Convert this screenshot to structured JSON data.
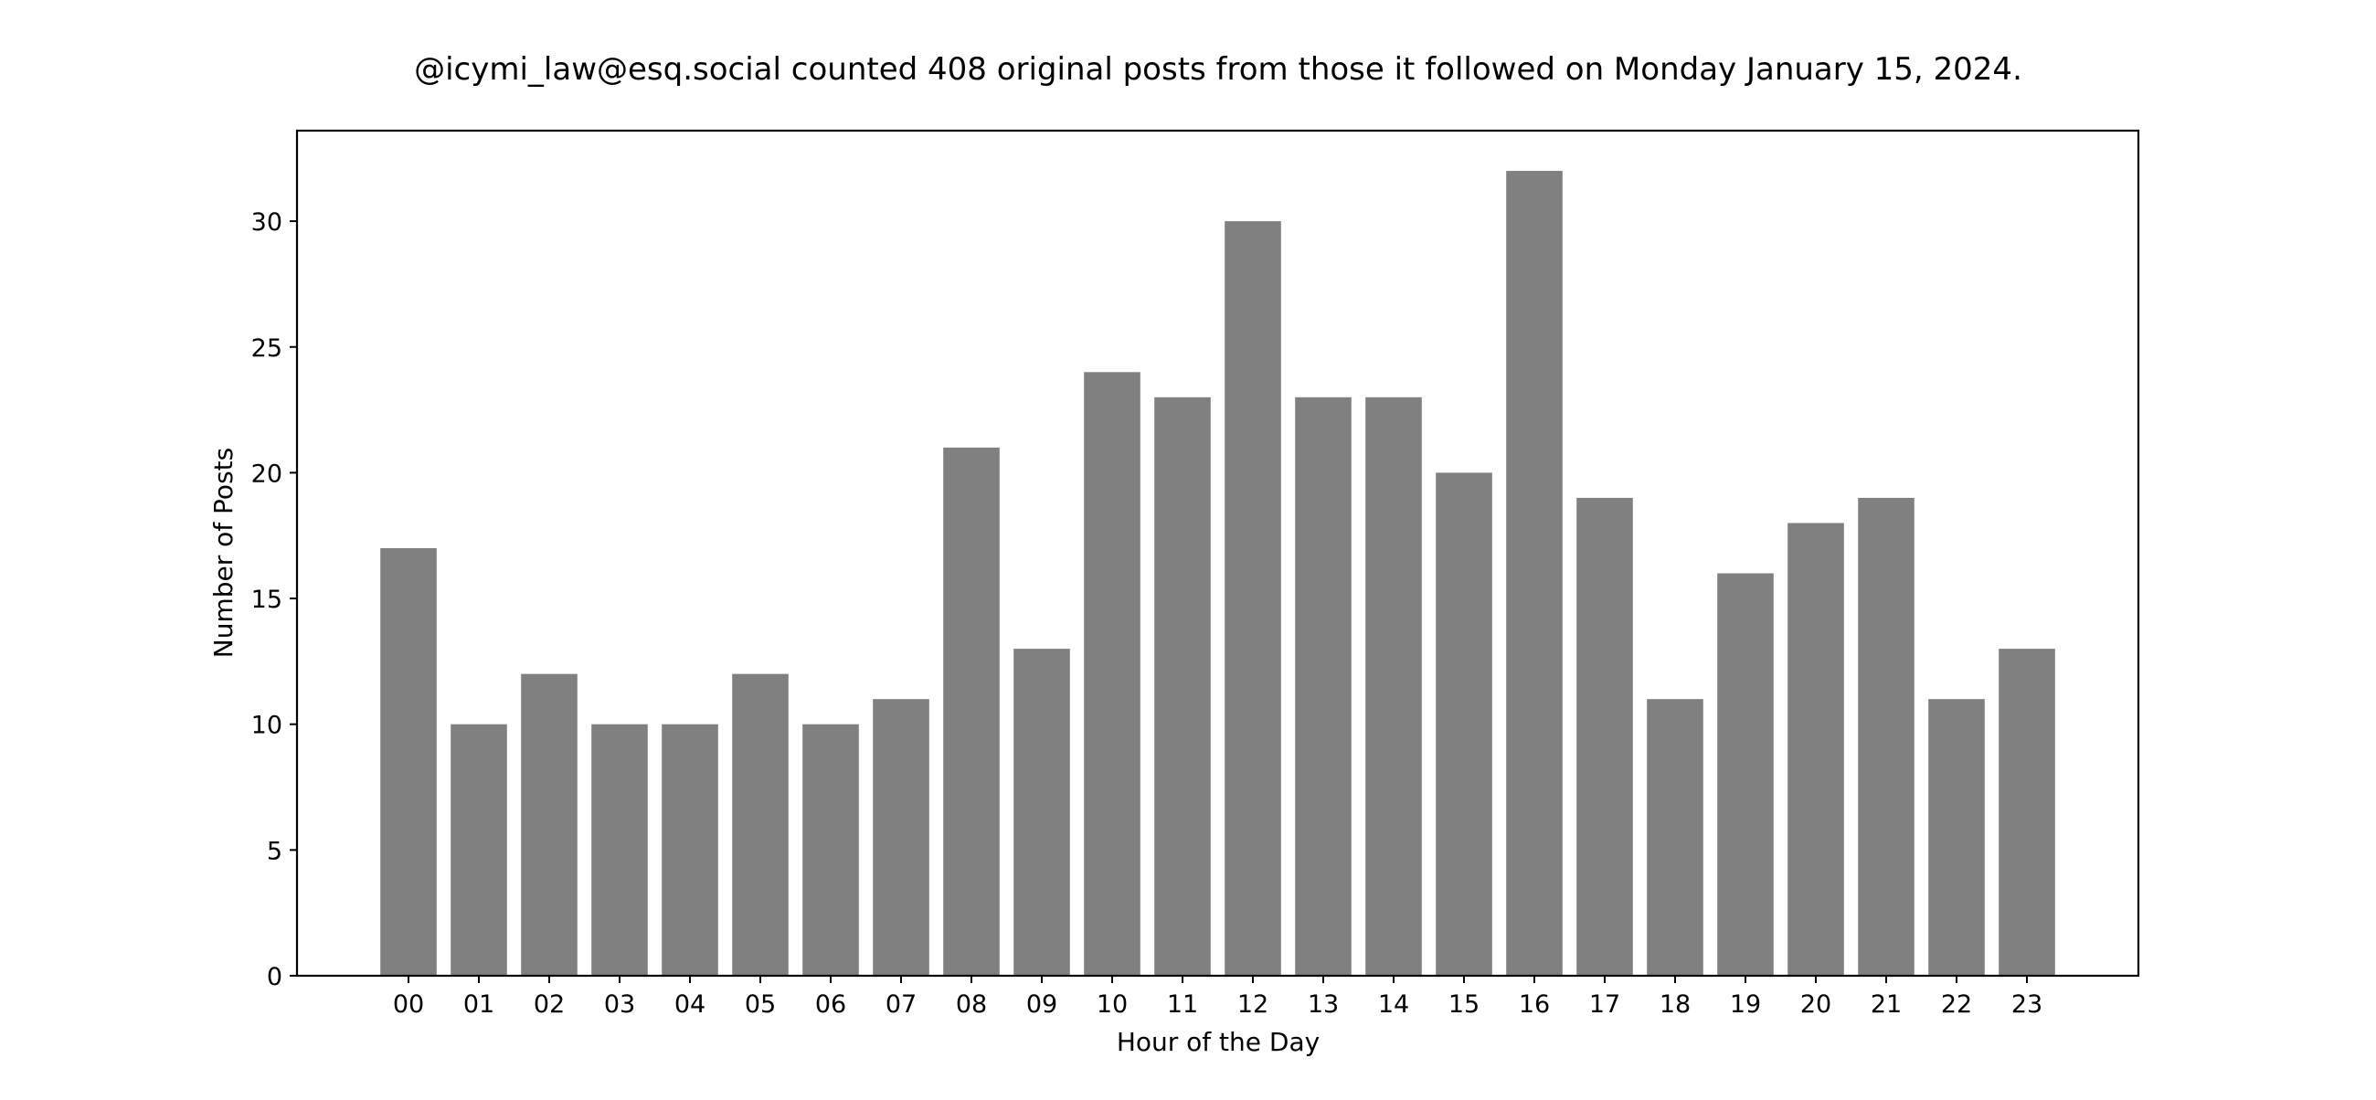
{
  "chart_data": {
    "type": "bar",
    "title": "@icymi_law@esq.social counted 408 original posts from those it followed on Monday January 15, 2024.",
    "xlabel": "Hour of the Day",
    "ylabel": "Number of Posts",
    "categories": [
      "00",
      "01",
      "02",
      "03",
      "04",
      "05",
      "06",
      "07",
      "08",
      "09",
      "10",
      "11",
      "12",
      "13",
      "14",
      "15",
      "16",
      "17",
      "18",
      "19",
      "20",
      "21",
      "22",
      "23"
    ],
    "values": [
      17,
      10,
      12,
      10,
      10,
      12,
      10,
      11,
      21,
      13,
      24,
      23,
      30,
      23,
      23,
      20,
      32,
      19,
      11,
      16,
      18,
      19,
      11,
      13
    ],
    "yticks": [
      0,
      5,
      10,
      15,
      20,
      25,
      30
    ],
    "ylim": [
      0,
      33.6
    ],
    "grid": false,
    "legend": null,
    "bar_color": "#808080",
    "total": 408
  }
}
